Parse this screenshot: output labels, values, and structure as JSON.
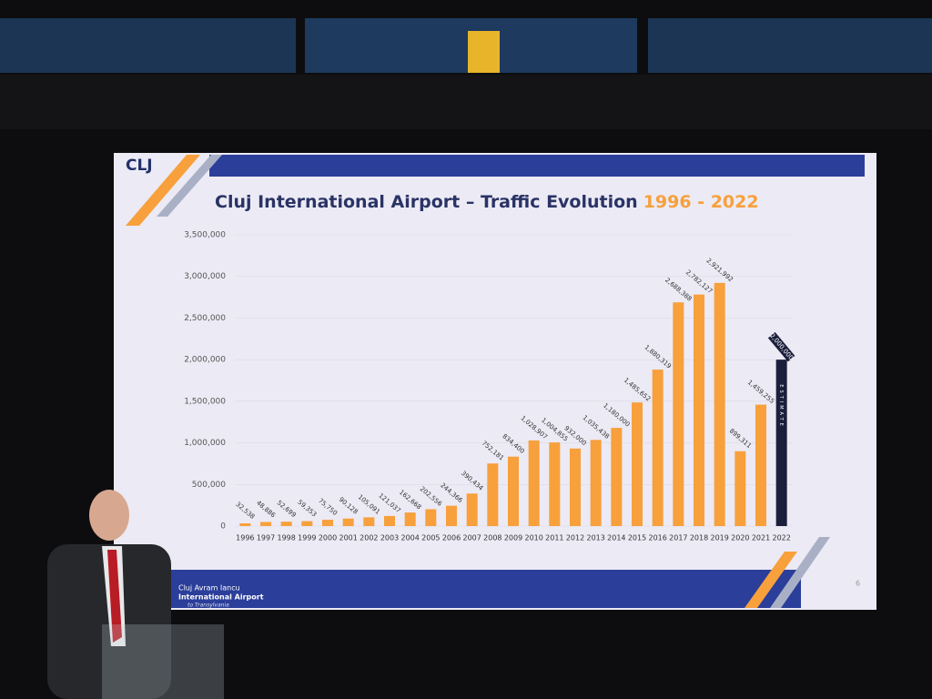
{
  "chart_data": {
    "type": "bar",
    "logo": "CLJ",
    "title": "Cluj International Airport – Traffic Evolution",
    "title_years": "1996 - 2022",
    "categories": [
      "1996",
      "1997",
      "1998",
      "1999",
      "2000",
      "2001",
      "2002",
      "2003",
      "2004",
      "2005",
      "2006",
      "2007",
      "2008",
      "2009",
      "2010",
      "2011",
      "2012",
      "2013",
      "2014",
      "2015",
      "2016",
      "2017",
      "2018",
      "2019",
      "2020",
      "2021",
      "2022"
    ],
    "values": [
      32538,
      48886,
      52699,
      59353,
      75750,
      90128,
      105091,
      121037,
      162668,
      202556,
      244366,
      390434,
      752181,
      834400,
      1028907,
      1004855,
      932000,
      1035438,
      1180000,
      1485652,
      1880319,
      2688388,
      2782127,
      2921992,
      899311,
      1459255,
      2000000
    ],
    "value_labels": [
      "32,538",
      "48,886",
      "52,699",
      "59,353",
      "75,750",
      "90,128",
      "105,091",
      "121,037",
      "162,668",
      "202,556",
      "244,366",
      "390,434",
      "752,181",
      "834,400",
      "1,028,907",
      "1,004,855",
      "932,000",
      "1,035,438",
      "1,180,000",
      "1,485,652",
      "1,880,319",
      "2,688,388",
      "2,782,127",
      "2,921,992",
      "899,311",
      "1,459,255",
      "2,000,000"
    ],
    "colors": [
      "#f7a03c",
      "#f7a03c",
      "#f7a03c",
      "#f7a03c",
      "#f7a03c",
      "#f7a03c",
      "#f7a03c",
      "#f7a03c",
      "#f7a03c",
      "#f7a03c",
      "#f7a03c",
      "#f7a03c",
      "#f7a03c",
      "#f7a03c",
      "#f7a03c",
      "#f7a03c",
      "#f7a03c",
      "#f7a03c",
      "#f7a03c",
      "#f7a03c",
      "#f7a03c",
      "#f7a03c",
      "#f7a03c",
      "#f7a03c",
      "#f7a03c",
      "#f7a03c",
      "#1b1f3b"
    ],
    "annotation": "ESTIMATE",
    "ylim": [
      0,
      3500000
    ],
    "yticks": [
      0,
      {
        "value": 500000,
        "label": "500,000"
      },
      {
        "value": 1000000,
        "label": "1,000,000"
      },
      {
        "value": 1500000,
        "label": "1,500,000"
      },
      {
        "value": 2000000,
        "label": "2,000,000"
      },
      {
        "value": 2500000,
        "label": "2,500,000"
      },
      {
        "value": 3000000,
        "label": "3,000,000"
      },
      {
        "value": 3500000,
        "label": "3,500,000"
      }
    ],
    "footer": {
      "line1": "Cluj Avram Iancu",
      "line2": "International Airport",
      "line3": "to Transylvania"
    },
    "page_number": 6
  }
}
